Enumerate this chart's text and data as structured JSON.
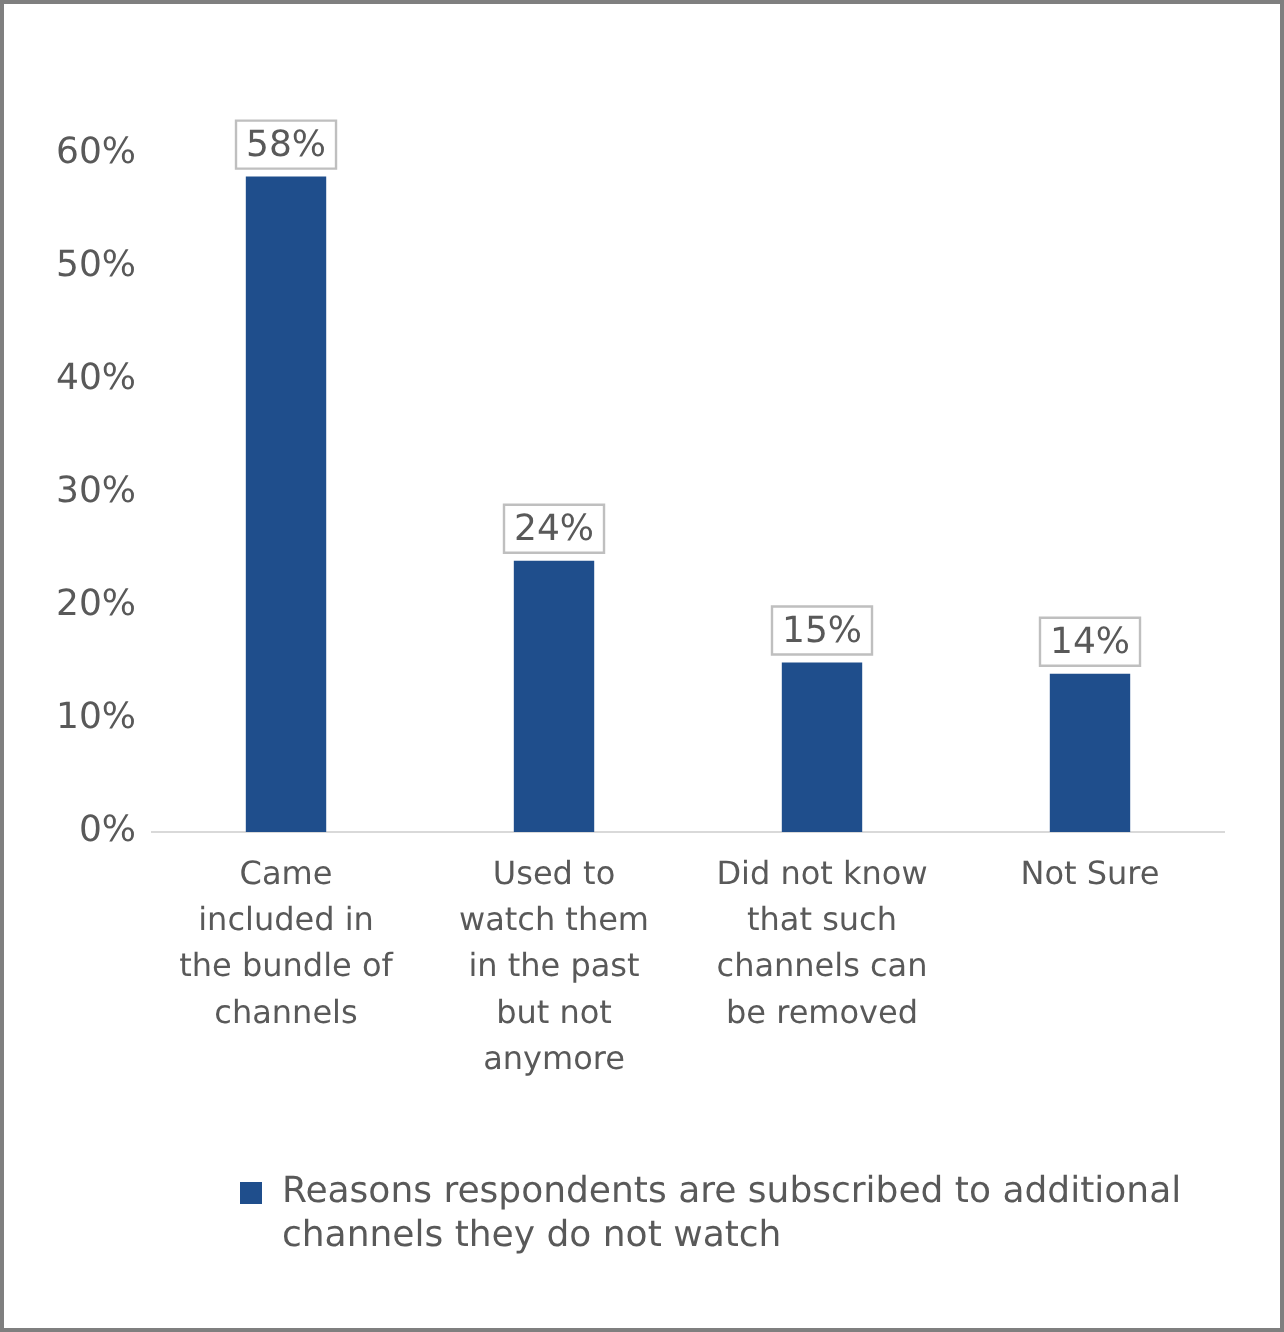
{
  "chart_data": {
    "type": "bar",
    "categories": [
      "Came included in the bundle of channels",
      "Used to watch them in the past but not anymore",
      "Did not know that such channels can be removed",
      "Not Sure"
    ],
    "series": [
      {
        "name": "Reasons respondents are subscribed to additional channels they do not watch",
        "color": "#1f4e8c",
        "values": [
          58,
          24,
          15,
          14
        ],
        "value_labels": [
          "58%",
          "24%",
          "15%",
          "14%"
        ]
      }
    ],
    "ylim": [
      0,
      60
    ],
    "yticks": [
      {
        "value": 0,
        "label": "0%"
      },
      {
        "value": 10,
        "label": "10%"
      },
      {
        "value": 20,
        "label": "20%"
      },
      {
        "value": 30,
        "label": "30%"
      },
      {
        "value": 40,
        "label": "40%"
      },
      {
        "value": 50,
        "label": "50%"
      },
      {
        "value": 60,
        "label": "60%"
      }
    ],
    "grid": false,
    "legend": "bottom"
  }
}
